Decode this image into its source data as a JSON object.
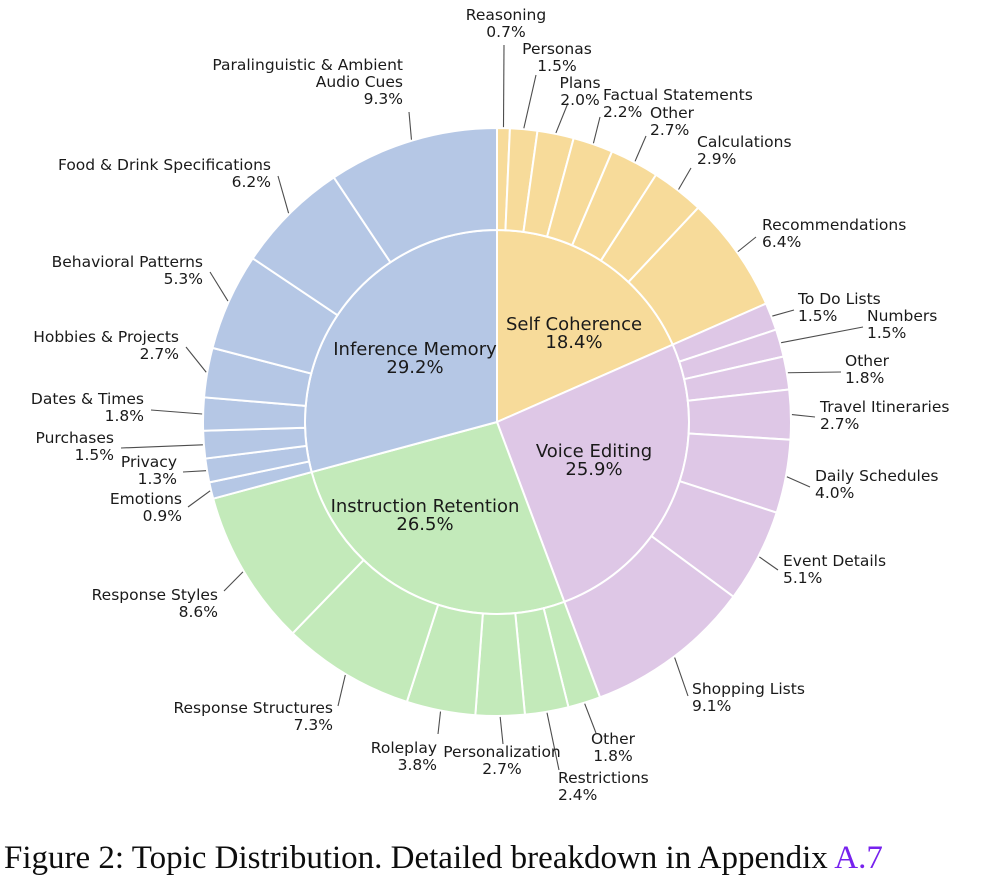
{
  "figure": {
    "caption_prefix": "Figure 2: Topic Distribution. Detailed breakdown in Appendix ",
    "caption_link": "A.7",
    "link_color": "#7722EE"
  },
  "chart_data": {
    "type": "pie",
    "subtype": "sunburst",
    "title": "Topic Distribution",
    "units": "percent",
    "start_angle_deg": 0,
    "direction": "clockwise",
    "legend": "none",
    "categories": [
      {
        "name": "Self Coherence",
        "pct": 18.4,
        "color": "#f7db9a",
        "children": [
          {
            "name": "Reasoning",
            "pct": 0.7
          },
          {
            "name": "Personas",
            "pct": 1.5
          },
          {
            "name": "Plans",
            "pct": 2.0
          },
          {
            "name": "Factual Statements",
            "pct": 2.2
          },
          {
            "name": "Other",
            "pct": 2.7
          },
          {
            "name": "Calculations",
            "pct": 2.9
          },
          {
            "name": "Recommendations",
            "pct": 6.4
          }
        ]
      },
      {
        "name": "Voice Editing",
        "pct": 25.9,
        "color": "#dec7e6",
        "children": [
          {
            "name": "To Do Lists",
            "pct": 1.5
          },
          {
            "name": "Numbers",
            "pct": 1.5
          },
          {
            "name": "Other",
            "pct": 1.8
          },
          {
            "name": "Travel Itineraries",
            "pct": 2.7
          },
          {
            "name": "Daily Schedules",
            "pct": 4.0
          },
          {
            "name": "Event Details",
            "pct": 5.1
          },
          {
            "name": "Shopping Lists",
            "pct": 9.1
          }
        ]
      },
      {
        "name": "Instruction Retention",
        "pct": 26.5,
        "color": "#c3eaba",
        "children": [
          {
            "name": "Other",
            "pct": 1.8
          },
          {
            "name": "Restrictions",
            "pct": 2.4
          },
          {
            "name": "Personalization",
            "pct": 2.7
          },
          {
            "name": "Roleplay",
            "pct": 3.8
          },
          {
            "name": "Response Structures",
            "pct": 7.3
          },
          {
            "name": "Response Styles",
            "pct": 8.6
          }
        ]
      },
      {
        "name": "Inference Memory",
        "pct": 29.2,
        "color": "#b5c7e5",
        "children": [
          {
            "name": "Emotions",
            "pct": 0.9
          },
          {
            "name": "Privacy",
            "pct": 1.3
          },
          {
            "name": "Purchases",
            "pct": 1.5
          },
          {
            "name": "Dates & Times",
            "pct": 1.8
          },
          {
            "name": "Hobbies & Projects",
            "pct": 2.7
          },
          {
            "name": "Behavioral Patterns",
            "pct": 5.3
          },
          {
            "name": "Food & Drink Specifications",
            "pct": 6.2
          },
          {
            "name": "Paralinguistic & Ambient Audio Cues",
            "pct": 9.3
          }
        ]
      }
    ]
  }
}
